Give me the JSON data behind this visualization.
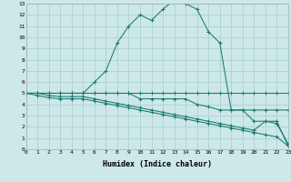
{
  "xlabel": "Humidex (Indice chaleur)",
  "background_color": "#cce8e8",
  "line_color": "#1a7a6e",
  "grid_color": "#aacccc",
  "xlim": [
    0,
    23
  ],
  "ylim": [
    0,
    13
  ],
  "xtick_labels": [
    "0",
    "1",
    "2",
    "3",
    "4",
    "5",
    "6",
    "7",
    "8",
    "9",
    "10",
    "11",
    "12",
    "13",
    "14",
    "15",
    "16",
    "17",
    "18",
    "19",
    "20",
    "21",
    "22",
    "23"
  ],
  "ytick_labels": [
    "0",
    "1",
    "2",
    "3",
    "4",
    "5",
    "6",
    "7",
    "8",
    "9",
    "10",
    "11",
    "12",
    "13"
  ],
  "series": [
    {
      "x": [
        0,
        1,
        2,
        3,
        4,
        5,
        6,
        7,
        8,
        9,
        10,
        11,
        12,
        13,
        14,
        15,
        16,
        17,
        18,
        19,
        20,
        21,
        22,
        23
      ],
      "y": [
        5,
        5,
        5,
        5,
        5,
        5,
        5,
        5,
        5,
        5,
        5,
        5,
        5,
        5,
        5,
        5,
        5,
        5,
        5,
        5,
        5,
        5,
        5,
        5
      ]
    },
    {
      "x": [
        0,
        1,
        2,
        3,
        4,
        5,
        6,
        7,
        8,
        9,
        10,
        11,
        12,
        13,
        14,
        15,
        16,
        17,
        18,
        19,
        20,
        21,
        22,
        23
      ],
      "y": [
        5,
        4.8,
        4.6,
        4.5,
        4.5,
        4.5,
        4.3,
        4.1,
        3.9,
        3.7,
        3.5,
        3.3,
        3.1,
        2.9,
        2.7,
        2.5,
        2.3,
        2.1,
        1.9,
        1.7,
        1.5,
        1.3,
        1.1,
        0.3
      ]
    },
    {
      "x": [
        0,
        1,
        2,
        3,
        4,
        5,
        6,
        7,
        8,
        9,
        10,
        11,
        12,
        13,
        14,
        15,
        16,
        17,
        18,
        19,
        20,
        21,
        22,
        23
      ],
      "y": [
        5,
        5,
        4.8,
        4.7,
        4.7,
        4.7,
        4.5,
        4.3,
        4.1,
        3.9,
        3.7,
        3.5,
        3.3,
        3.1,
        2.9,
        2.7,
        2.5,
        2.3,
        2.1,
        1.9,
        1.7,
        2.5,
        2.3,
        0.5
      ]
    },
    {
      "x": [
        0,
        1,
        2,
        3,
        4,
        5,
        6,
        7,
        8,
        9,
        10,
        11,
        12,
        13,
        14,
        15,
        16,
        17,
        18,
        19,
        20,
        21,
        22,
        23
      ],
      "y": [
        5,
        5,
        5,
        5,
        5,
        5,
        5,
        5,
        5,
        5,
        4.5,
        4.5,
        4.5,
        4.5,
        4.5,
        4,
        3.8,
        3.5,
        3.5,
        3.5,
        3.5,
        3.5,
        3.5,
        3.5
      ]
    },
    {
      "x": [
        0,
        1,
        2,
        3,
        4,
        5,
        6,
        7,
        8,
        9,
        10,
        11,
        12,
        13,
        14,
        15,
        16,
        17,
        18,
        19,
        20,
        21,
        22,
        23
      ],
      "y": [
        5,
        5,
        5,
        5,
        5,
        5,
        6,
        7,
        9.5,
        11,
        12,
        11.5,
        12.5,
        13.3,
        13,
        12.5,
        10.5,
        9.5,
        3.5,
        3.5,
        2.5,
        2.5,
        2.5,
        0.3
      ]
    }
  ]
}
